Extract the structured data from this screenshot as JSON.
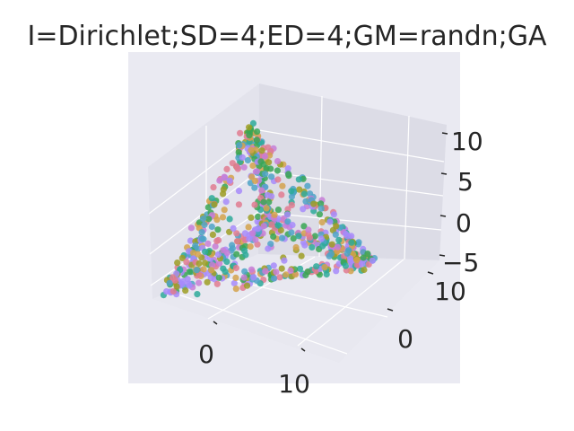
{
  "chart_data": {
    "type": "scatter",
    "projection": "3d",
    "title": "I=Dirichlet;SD=4;ED=4;GM=randn;GA",
    "xlabel": "",
    "ylabel": "",
    "zlabel": "",
    "x_ticks": [
      "0",
      "10"
    ],
    "y_ticks": [
      "0",
      "10"
    ],
    "z_ticks": [
      "10",
      "5",
      "0",
      "−5"
    ],
    "grid": true,
    "legend": "none",
    "marker_colors": [
      "#e07b91",
      "#2eaa9a",
      "#9e9d24",
      "#4fa3c7",
      "#a78bfa",
      "#d4a24c",
      "#3aa655",
      "#c77ed6"
    ],
    "pane_colors": [
      "#e6e6ee",
      "#dedee8",
      "#eaeaf2"
    ],
    "background_color": "#eaeaf2"
  }
}
